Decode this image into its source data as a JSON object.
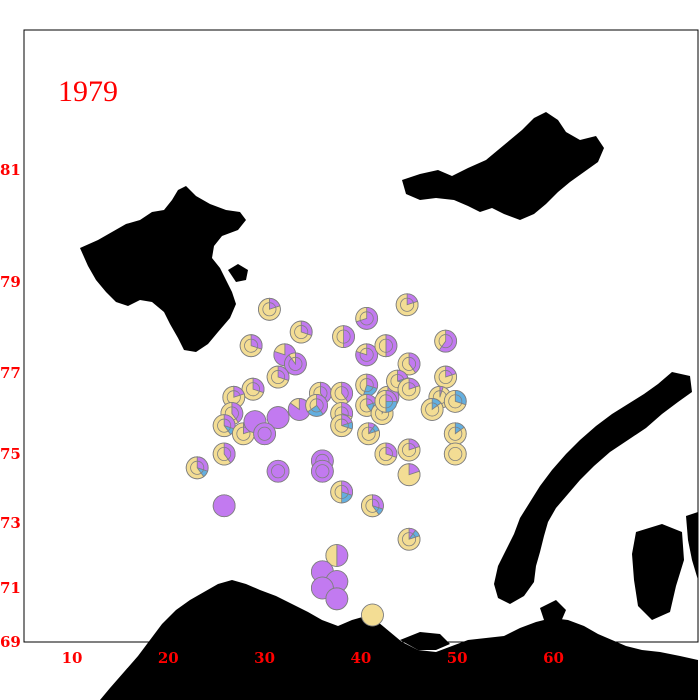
{
  "year_label": "1979",
  "axis": {
    "lon_ticks": [
      "10",
      "20",
      "30",
      "40",
      "50",
      "60"
    ],
    "lat_ticks": [
      "69",
      "71",
      "73",
      "75",
      "77",
      "79",
      "81"
    ]
  },
  "colors": {
    "sand": "#f3dd94",
    "violet": "#c27af0",
    "blue": "#63afe0",
    "land": "#000000",
    "label": "#ff0000"
  },
  "chart_data": {
    "type": "scatter",
    "title": "1979",
    "xlabel": "",
    "ylabel": "",
    "xlim": [
      5,
      70
    ],
    "ylim": [
      69,
      83
    ],
    "legend": "none",
    "note": "Each station drawn as a pie; values are composition fractions (sand, violet, blue)",
    "stations": [
      {
        "lon": 30.5,
        "lat": 78.4,
        "sand": 0.8,
        "violet": 0.2,
        "blue": 0,
        "ring": true
      },
      {
        "lon": 33.8,
        "lat": 77.9,
        "sand": 0.7,
        "violet": 0.3,
        "blue": 0,
        "ring": true
      },
      {
        "lon": 38.2,
        "lat": 77.8,
        "sand": 0.5,
        "violet": 0.5,
        "blue": 0,
        "ring": true
      },
      {
        "lon": 40.6,
        "lat": 78.2,
        "sand": 0.3,
        "violet": 0.7,
        "blue": 0,
        "ring": true
      },
      {
        "lon": 44.8,
        "lat": 78.5,
        "sand": 0.8,
        "violet": 0.2,
        "blue": 0,
        "ring": true
      },
      {
        "lon": 48.8,
        "lat": 77.7,
        "sand": 0.4,
        "violet": 0.6,
        "blue": 0,
        "ring": true
      },
      {
        "lon": 28.6,
        "lat": 77.6,
        "sand": 0.7,
        "violet": 0.3,
        "blue": 0,
        "ring": true
      },
      {
        "lon": 32.1,
        "lat": 77.4,
        "sand": 0.2,
        "violet": 0.8,
        "blue": 0,
        "ring": false
      },
      {
        "lon": 33.2,
        "lat": 77.2,
        "sand": 0.1,
        "violet": 0.9,
        "blue": 0,
        "ring": true
      },
      {
        "lon": 40.6,
        "lat": 77.4,
        "sand": 0.2,
        "violet": 0.8,
        "blue": 0,
        "ring": true
      },
      {
        "lon": 42.6,
        "lat": 77.6,
        "sand": 0.5,
        "violet": 0.5,
        "blue": 0,
        "ring": true
      },
      {
        "lon": 45.0,
        "lat": 77.2,
        "sand": 0.6,
        "violet": 0.4,
        "blue": 0,
        "ring": true
      },
      {
        "lon": 48.8,
        "lat": 76.9,
        "sand": 0.8,
        "violet": 0.2,
        "blue": 0,
        "ring": true
      },
      {
        "lon": 31.4,
        "lat": 76.9,
        "sand": 0.7,
        "violet": 0.3,
        "blue": 0,
        "ring": true
      },
      {
        "lon": 28.8,
        "lat": 76.6,
        "sand": 0.7,
        "violet": 0.3,
        "blue": 0,
        "ring": true
      },
      {
        "lon": 26.8,
        "lat": 76.4,
        "sand": 0.8,
        "violet": 0.2,
        "blue": 0,
        "ring": true
      },
      {
        "lon": 35.8,
        "lat": 76.5,
        "sand": 0.6,
        "violet": 0.4,
        "blue": 0,
        "ring": true
      },
      {
        "lon": 38.0,
        "lat": 76.5,
        "sand": 0.6,
        "violet": 0.4,
        "blue": 0,
        "ring": true
      },
      {
        "lon": 40.6,
        "lat": 76.7,
        "sand": 0.45,
        "violet": 0.3,
        "blue": 0.25,
        "ring": true
      },
      {
        "lon": 42.8,
        "lat": 76.4,
        "sand": 0.6,
        "violet": 0.4,
        "blue": 0,
        "ring": true
      },
      {
        "lon": 43.8,
        "lat": 76.8,
        "sand": 0.7,
        "violet": 0.2,
        "blue": 0.1,
        "ring": true
      },
      {
        "lon": 45.0,
        "lat": 76.6,
        "sand": 0.8,
        "violet": 0.2,
        "blue": 0,
        "ring": true
      },
      {
        "lon": 48.2,
        "lat": 76.4,
        "sand": 0.95,
        "violet": 0.05,
        "blue": 0,
        "ring": true
      },
      {
        "lon": 49.8,
        "lat": 76.3,
        "sand": 0.7,
        "violet": 0,
        "blue": 0.3,
        "ring": true
      },
      {
        "lon": 26.6,
        "lat": 76.0,
        "sand": 0.6,
        "violet": 0.4,
        "blue": 0,
        "ring": true
      },
      {
        "lon": 31.4,
        "lat": 75.9,
        "sand": 0,
        "violet": 1.0,
        "blue": 0,
        "ring": false
      },
      {
        "lon": 33.6,
        "lat": 76.1,
        "sand": 0.15,
        "violet": 0.85,
        "blue": 0,
        "ring": false
      },
      {
        "lon": 35.4,
        "lat": 76.2,
        "sand": 0.35,
        "violet": 0.4,
        "blue": 0.25,
        "ring": true
      },
      {
        "lon": 38.0,
        "lat": 76.0,
        "sand": 0.7,
        "violet": 0.3,
        "blue": 0,
        "ring": true
      },
      {
        "lon": 40.6,
        "lat": 76.2,
        "sand": 0.6,
        "violet": 0.2,
        "blue": 0.2,
        "ring": true
      },
      {
        "lon": 42.2,
        "lat": 76.0,
        "sand": 0.9,
        "violet": 0.1,
        "blue": 0,
        "ring": true
      },
      {
        "lon": 42.6,
        "lat": 76.3,
        "sand": 0.5,
        "violet": 0.25,
        "blue": 0.25,
        "ring": true
      },
      {
        "lon": 47.4,
        "lat": 76.1,
        "sand": 0.85,
        "violet": 0,
        "blue": 0.15,
        "ring": true
      },
      {
        "lon": 25.8,
        "lat": 75.7,
        "sand": 0.6,
        "violet": 0.3,
        "blue": 0.1,
        "ring": true
      },
      {
        "lon": 27.8,
        "lat": 75.5,
        "sand": 0.8,
        "violet": 0.2,
        "blue": 0,
        "ring": true
      },
      {
        "lon": 29.0,
        "lat": 75.8,
        "sand": 0,
        "violet": 1.0,
        "blue": 0,
        "ring": false
      },
      {
        "lon": 30.0,
        "lat": 75.5,
        "sand": 0,
        "violet": 1.0,
        "blue": 0,
        "ring": true
      },
      {
        "lon": 38.0,
        "lat": 75.7,
        "sand": 0.7,
        "violet": 0.2,
        "blue": 0.1,
        "ring": true
      },
      {
        "lon": 40.8,
        "lat": 75.5,
        "sand": 0.8,
        "violet": 0.1,
        "blue": 0.1,
        "ring": true
      },
      {
        "lon": 45.0,
        "lat": 75.1,
        "sand": 0.8,
        "violet": 0.2,
        "blue": 0,
        "ring": true
      },
      {
        "lon": 49.8,
        "lat": 75.5,
        "sand": 0.85,
        "violet": 0,
        "blue": 0.15,
        "ring": true
      },
      {
        "lon": 25.8,
        "lat": 75.0,
        "sand": 0.6,
        "violet": 0.4,
        "blue": 0,
        "ring": true
      },
      {
        "lon": 23.0,
        "lat": 74.6,
        "sand": 0.6,
        "violet": 0.3,
        "blue": 0.1,
        "ring": true
      },
      {
        "lon": 31.4,
        "lat": 74.5,
        "sand": 0,
        "violet": 1.0,
        "blue": 0,
        "ring": true
      },
      {
        "lon": 36.0,
        "lat": 74.8,
        "sand": 0,
        "violet": 1.0,
        "blue": 0,
        "ring": true
      },
      {
        "lon": 36.0,
        "lat": 74.5,
        "sand": 0,
        "violet": 1.0,
        "blue": 0,
        "ring": true
      },
      {
        "lon": 42.6,
        "lat": 75.0,
        "sand": 0.7,
        "violet": 0.3,
        "blue": 0,
        "ring": true
      },
      {
        "lon": 45.0,
        "lat": 74.4,
        "sand": 0.8,
        "violet": 0.2,
        "blue": 0,
        "ring": false
      },
      {
        "lon": 49.8,
        "lat": 75.0,
        "sand": 1.0,
        "violet": 0,
        "blue": 0,
        "ring": true
      },
      {
        "lon": 38.0,
        "lat": 73.9,
        "sand": 0.5,
        "violet": 0.3,
        "blue": 0.2,
        "ring": true
      },
      {
        "lon": 41.2,
        "lat": 73.5,
        "sand": 0.6,
        "violet": 0.3,
        "blue": 0.1,
        "ring": true
      },
      {
        "lon": 25.8,
        "lat": 73.5,
        "sand": 0,
        "violet": 1.0,
        "blue": 0,
        "ring": false
      },
      {
        "lon": 45.0,
        "lat": 72.5,
        "sand": 0.8,
        "violet": 0.1,
        "blue": 0.1,
        "ring": true
      },
      {
        "lon": 37.5,
        "lat": 72.0,
        "sand": 0.5,
        "violet": 0.5,
        "blue": 0,
        "ring": false
      },
      {
        "lon": 36.0,
        "lat": 71.5,
        "sand": 0,
        "violet": 1.0,
        "blue": 0,
        "ring": false
      },
      {
        "lon": 37.5,
        "lat": 71.2,
        "sand": 0,
        "violet": 1.0,
        "blue": 0,
        "ring": false
      },
      {
        "lon": 36.0,
        "lat": 71.0,
        "sand": 0,
        "violet": 1.0,
        "blue": 0,
        "ring": false
      },
      {
        "lon": 37.5,
        "lat": 70.6,
        "sand": 0,
        "violet": 1.0,
        "blue": 0,
        "ring": false
      },
      {
        "lon": 41.2,
        "lat": 70.0,
        "sand": 1.0,
        "violet": 0,
        "blue": 0,
        "ring": false
      }
    ]
  }
}
